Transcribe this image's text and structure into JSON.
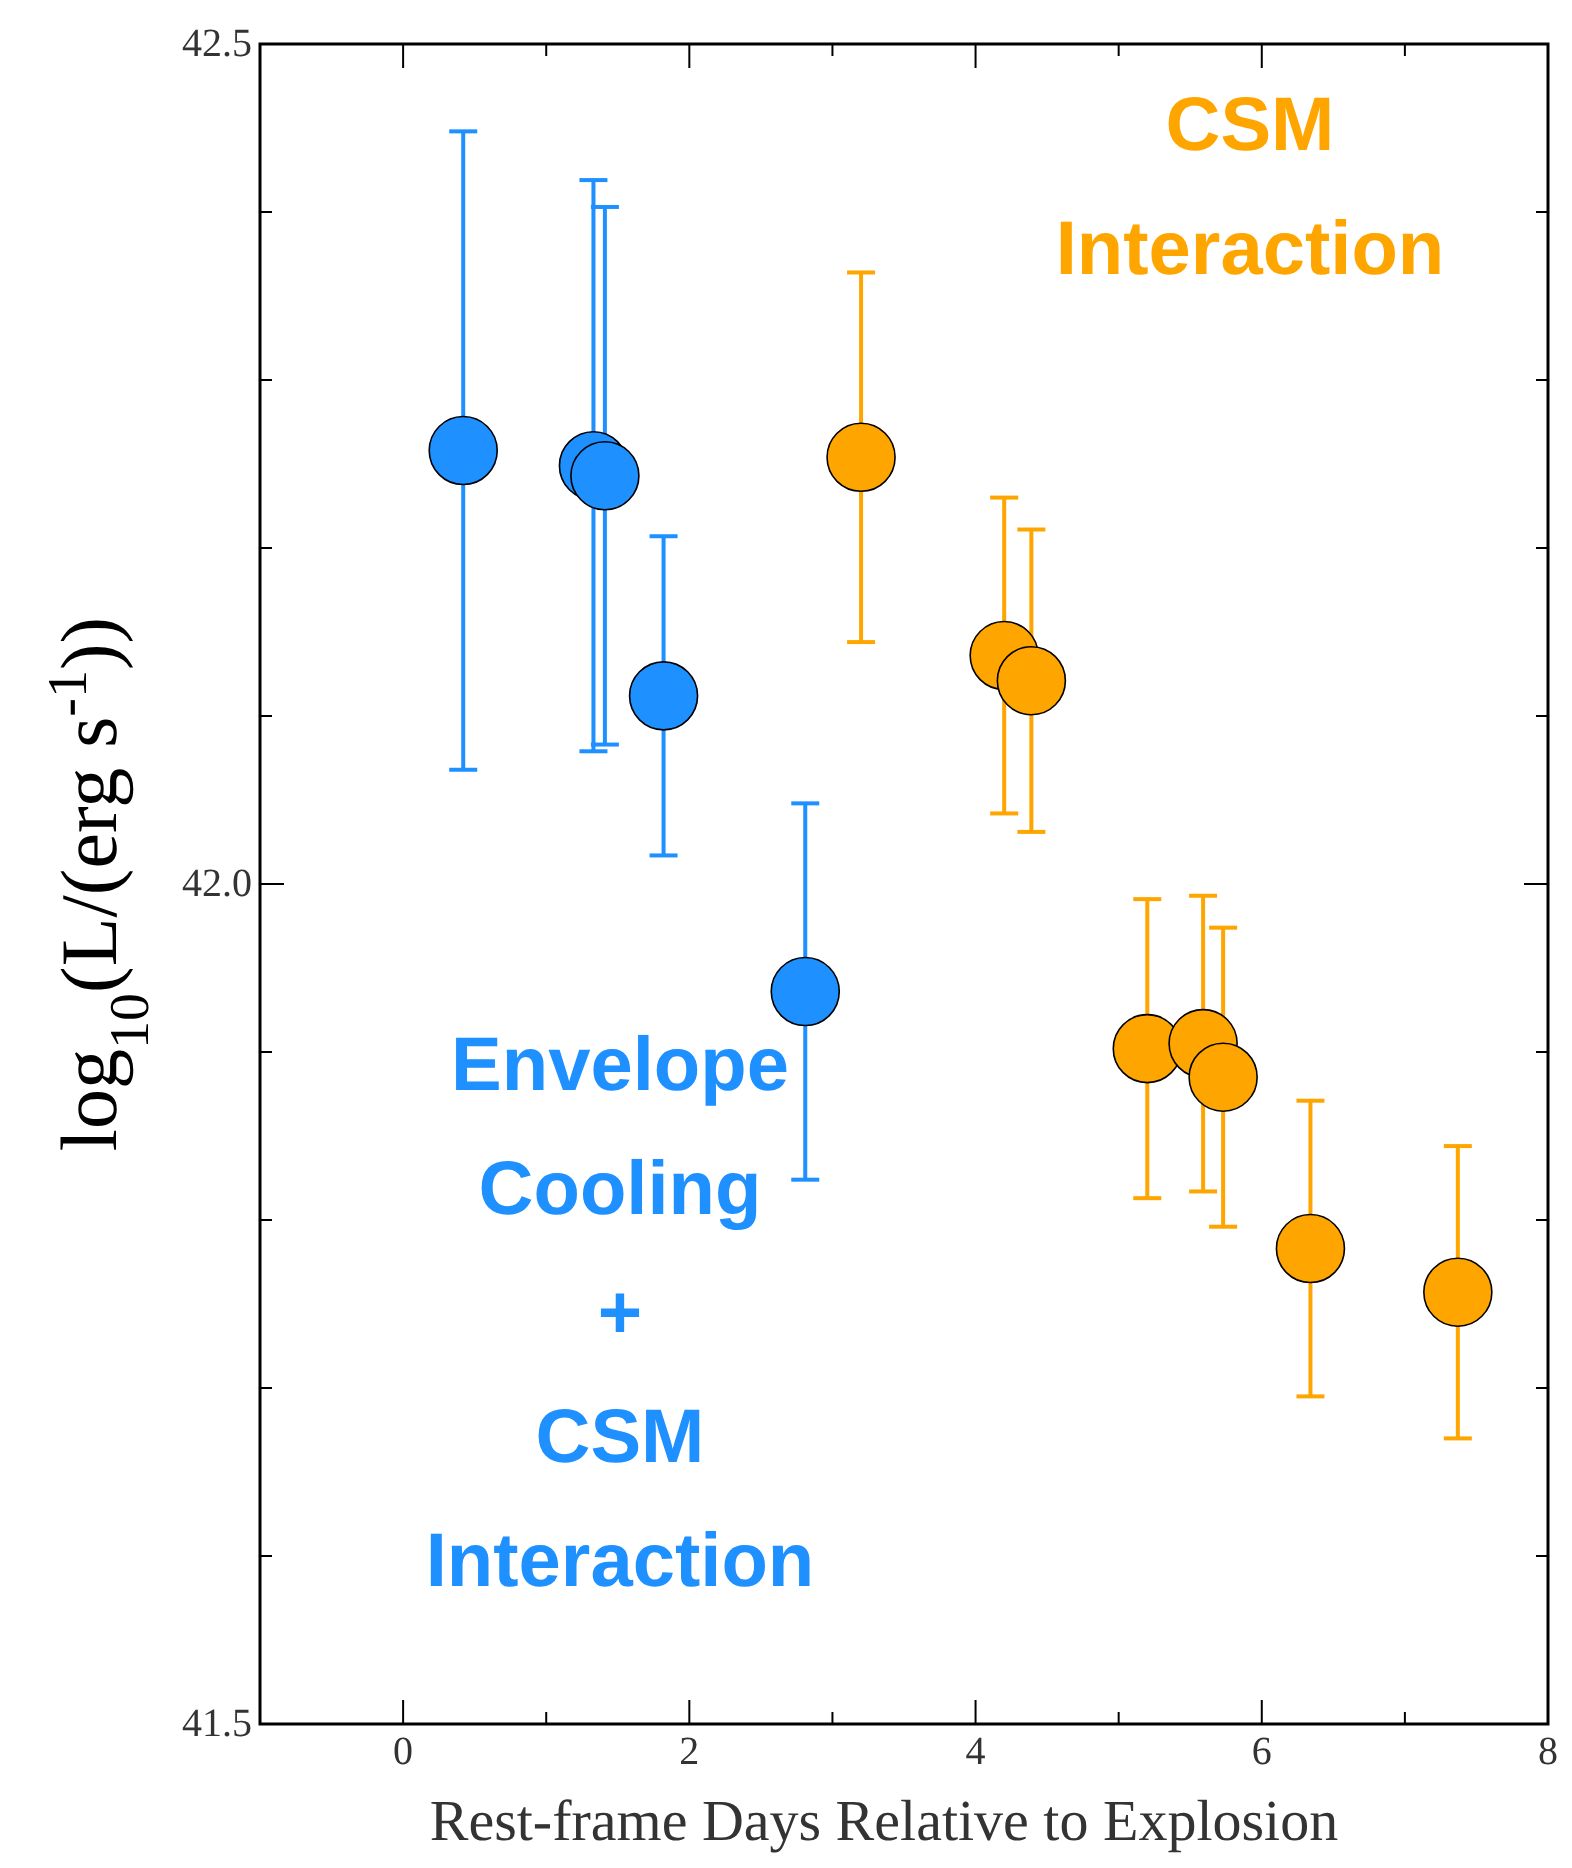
{
  "chart_data": {
    "type": "scatter",
    "xlabel": "Rest-frame Days Relative to Explosion",
    "ylabel": "log$_{10}$(L/(erg s$^{-1}$))",
    "xlim": [
      -1,
      8
    ],
    "xticks": [
      {
        "value": -1,
        "label": null
      },
      0,
      {
        "value": 1,
        "label": null
      },
      2,
      {
        "value": 3,
        "label": null
      },
      4,
      {
        "value": 5,
        "label": null
      },
      6,
      {
        "value": 7,
        "label": null
      },
      8
    ],
    "ylim": [
      41.5,
      42.5
    ],
    "yticks": [
      41.5,
      {
        "value": 41.6,
        "label": null
      },
      {
        "value": 41.7,
        "label": null
      },
      {
        "value": 41.8,
        "label": null
      },
      {
        "value": 41.9,
        "label": null
      },
      "42.0",
      {
        "value": 42.1,
        "label": null
      },
      {
        "value": 42.2,
        "label": null
      },
      {
        "value": 42.3,
        "label": null
      },
      {
        "value": 42.4,
        "label": null
      },
      42.5
    ],
    "marker": "circle",
    "grid": false,
    "series": [
      {
        "color": "#1e90ff",
        "x": [
          0.42,
          1.33,
          1.41,
          1.82,
          2.81
        ],
        "values": [
          42.258,
          42.249,
          42.243,
          42.112,
          41.936
        ],
        "errors": [
          0.19,
          0.17,
          0.16,
          0.095,
          0.112
        ]
      },
      {
        "color": "#ffa500",
        "x": [
          3.2,
          4.2,
          4.39,
          5.2,
          5.59,
          5.73,
          6.34,
          7.37
        ],
        "values": [
          42.254,
          42.136,
          42.121,
          41.902,
          41.905,
          41.885,
          41.783,
          41.757
        ],
        "errors": [
          0.11,
          0.094,
          0.09,
          0.089,
          0.088,
          0.089,
          0.088,
          0.087
        ]
      }
    ],
    "annotations": [
      "Envelope\nCooling\n+\nCSM\nInteraction",
      "CSM\nInteraction"
    ]
  }
}
